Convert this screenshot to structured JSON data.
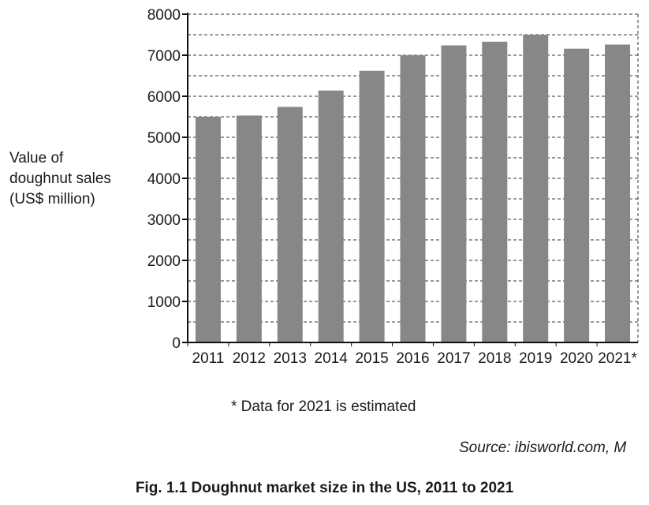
{
  "chart_data": {
    "type": "bar",
    "title": "Fig. 1.1 Doughnut market size in the US, 2011 to 2021",
    "ylabel": "Value of\ndoughnut sales\n(US$ million)",
    "xlabel": "",
    "categories": [
      "2011",
      "2012",
      "2013",
      "2014",
      "2015",
      "2016",
      "2017",
      "2018",
      "2019",
      "2020",
      "2021*"
    ],
    "values": [
      5500,
      5530,
      5740,
      6140,
      6620,
      7000,
      7240,
      7330,
      7500,
      7160,
      7260
    ],
    "ylim": [
      0,
      8000
    ],
    "yticks": [
      "0",
      "1000",
      "2000",
      "3000",
      "4000",
      "5000",
      "6000",
      "7000",
      "8000"
    ],
    "grid": "dashed horizontal every 500",
    "bar_color": "#878787",
    "footnote": "* Data for 2021 is estimated",
    "source": "Source: ibisworld.com, M"
  }
}
